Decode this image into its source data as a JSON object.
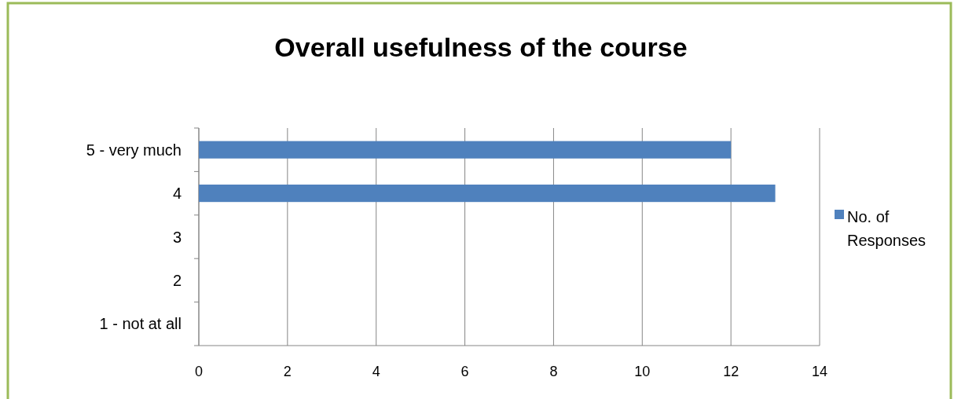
{
  "chart_data": {
    "type": "bar",
    "orientation": "horizontal",
    "title": "Overall usefulness of the course",
    "categories": [
      "5 - very much",
      "4",
      "3",
      "2",
      "1 - not at all"
    ],
    "series": [
      {
        "name": "No. of Responses",
        "color": "#4f81bd",
        "values": [
          12,
          13,
          0,
          0,
          0
        ]
      }
    ],
    "xlim": [
      0,
      14
    ],
    "xticks": [
      0,
      2,
      4,
      6,
      8,
      10,
      12,
      14
    ],
    "grid": "x",
    "legend": "right"
  }
}
